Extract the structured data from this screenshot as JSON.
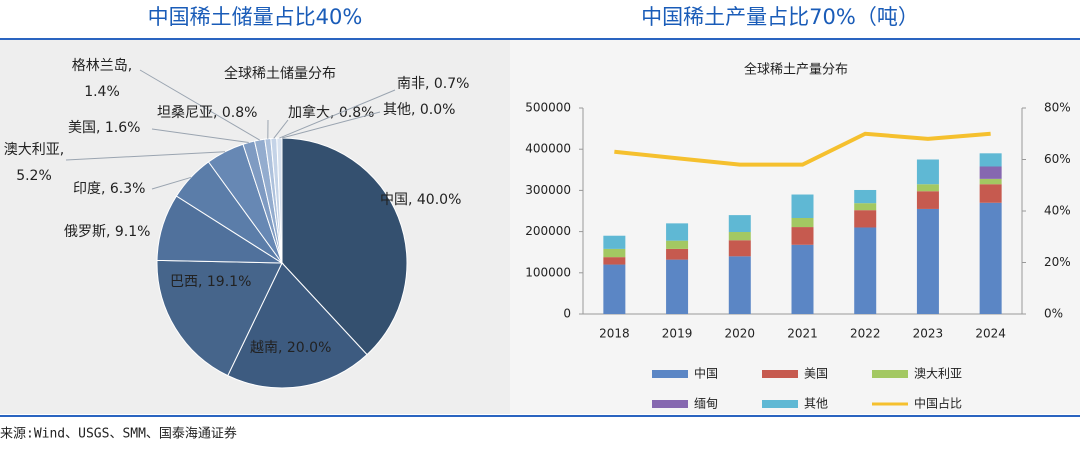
{
  "chart_data": [
    {
      "type": "pie",
      "heading": "中国稀土储量占比40%",
      "title": "全球稀土储量分布",
      "values": [
        40.0,
        20.0,
        19.1,
        9.1,
        6.3,
        5.2,
        1.6,
        1.4,
        0.8,
        0.8,
        0.7,
        0.0
      ],
      "value_labels": [
        "中国, 40.0%",
        "越南, 20.0%",
        "巴西, 19.1%",
        "俄罗斯, 9.1%",
        "印度, 6.3%",
        "澳大利亚,\n5.2%",
        "美国, 1.6%",
        "格林兰岛,\n1.4%",
        "坦桑尼亚, 0.8%",
        "加拿大, 0.8%",
        "南非, 0.7%",
        "其他, 0.0%"
      ],
      "colors": [
        "#34506f",
        "#3d5b80",
        "#46658b",
        "#50719c",
        "#5b7da9",
        "#6788b4",
        "#7f9bc2",
        "#93acce",
        "#adc1dc",
        "#c4d3e7",
        "#d8e2ef",
        "#eef2f8"
      ]
    },
    {
      "type": "bar",
      "heading": "中国稀土产量占比70%（吨）",
      "title": "全球稀土产量分布",
      "stacked": true,
      "categories": [
        "2018",
        "2019",
        "2020",
        "2021",
        "2022",
        "2023",
        "2024"
      ],
      "series": [
        {
          "name": "中国",
          "color": "#5b86c5",
          "values": [
            120000,
            132000,
            140000,
            168000,
            210000,
            255000,
            270000
          ]
        },
        {
          "name": "美国",
          "color": "#c65a4f",
          "values": [
            18000,
            26000,
            39000,
            43000,
            42000,
            43000,
            45000
          ]
        },
        {
          "name": "澳大利亚",
          "color": "#a3c862",
          "values": [
            20000,
            20000,
            20000,
            22000,
            17000,
            17000,
            13000
          ]
        },
        {
          "name": "缅甸",
          "color": "#8668b0",
          "values": [
            0,
            0,
            0,
            0,
            0,
            0,
            30000
          ]
        },
        {
          "name": "其他",
          "color": "#5fb8d4",
          "values": [
            32000,
            42000,
            41000,
            57000,
            32000,
            60000,
            32000
          ]
        },
        {
          "name": "中国占比",
          "type": "line",
          "axis": "y2",
          "color": "#f5c02e",
          "values": [
            63,
            60.5,
            58,
            58,
            70,
            68,
            70
          ]
        }
      ],
      "ylim": [
        0,
        500000
      ],
      "yticks": [
        0,
        100000,
        200000,
        300000,
        400000,
        500000
      ],
      "y2lim": [
        0,
        80
      ],
      "y2ticks": [
        {
          "value": 0,
          "label": "0%"
        },
        {
          "value": 20,
          "label": "20%"
        },
        {
          "value": 40,
          "label": "40%"
        },
        {
          "value": 60,
          "label": "60%"
        },
        {
          "value": 80,
          "label": "80%"
        }
      ]
    }
  ],
  "source": "来源:Wind、USGS、SMM、国泰海通证券"
}
